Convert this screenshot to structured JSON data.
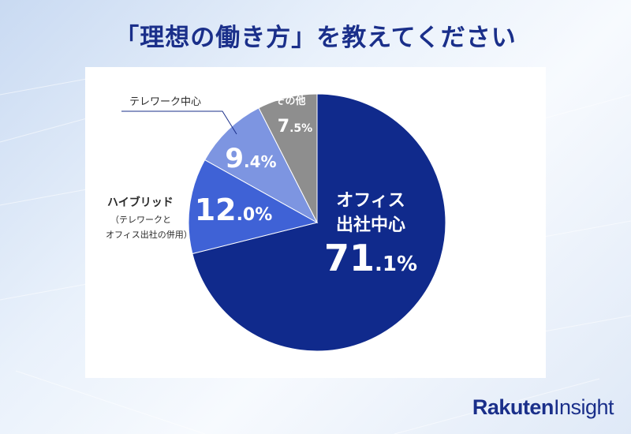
{
  "title": "「理想の働き方」を教えてください",
  "logo": {
    "brand": "Rakuten",
    "product": "Insight"
  },
  "colors": {
    "title": "#1a2f8a",
    "leader": "#1a2f8a"
  },
  "chart_data": {
    "type": "pie",
    "title": "「理想の働き方」を教えてください",
    "slices": [
      {
        "label_lines": [
          "オフィス",
          "出社中心"
        ],
        "value": 71.1,
        "value_main": "71",
        "value_decimal": ".1%",
        "color": "#102a8c"
      },
      {
        "label_lines": [
          "ハイブリッド",
          "（テレワークと",
          "オフィス出社の併用）"
        ],
        "value": 12.0,
        "value_main": "12",
        "value_decimal": ".0%",
        "color": "#3f62d6"
      },
      {
        "label_lines": [
          "テレワーク中心"
        ],
        "value": 9.4,
        "value_main": "9",
        "value_decimal": ".4%",
        "color": "#7d95e1"
      },
      {
        "label_lines": [
          "その他"
        ],
        "value": 7.5,
        "value_main": "7",
        "value_decimal": ".5%",
        "color": "#8e8e8e"
      }
    ]
  }
}
